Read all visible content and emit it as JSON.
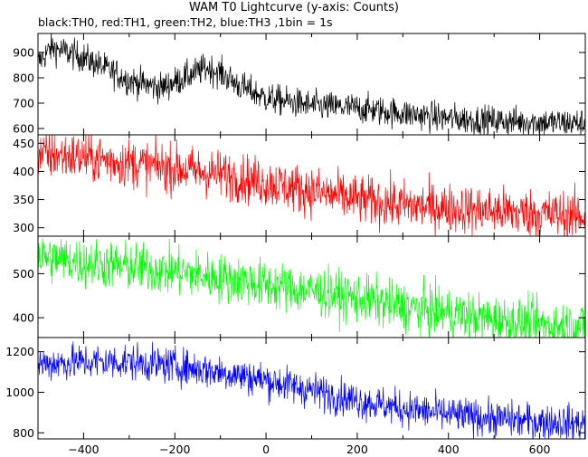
{
  "chart_data": {
    "type": "line",
    "title": "WAM T0 Lightcurve (y-axis: Counts)",
    "subtitle": "black:TH0, red:TH1, green:TH2, blue:TH3 ,1bin = 1s",
    "x_range": [
      -500,
      700
    ],
    "x_ticks": [
      -400,
      -200,
      0,
      200,
      400,
      600
    ],
    "bin_seconds": 1,
    "panels": [
      {
        "name": "TH0",
        "color": "#000000",
        "ylim": [
          575,
          975
        ],
        "y_ticks": [
          600,
          700,
          800,
          900
        ],
        "noise": 30,
        "trend": [
          [
            -500,
            860
          ],
          [
            -470,
            920
          ],
          [
            -400,
            880
          ],
          [
            -300,
            790
          ],
          [
            -230,
            760
          ],
          [
            -180,
            800
          ],
          [
            -130,
            840
          ],
          [
            -100,
            820
          ],
          [
            -60,
            770
          ],
          [
            0,
            720
          ],
          [
            100,
            690
          ],
          [
            200,
            680
          ],
          [
            300,
            660
          ],
          [
            400,
            640
          ],
          [
            500,
            630
          ],
          [
            600,
            625
          ],
          [
            700,
            620
          ]
        ]
      },
      {
        "name": "TH1",
        "color": "#ff0000",
        "ylim": [
          285,
          465
        ],
        "y_ticks": [
          300,
          350,
          400,
          450
        ],
        "noise": 22,
        "trend": [
          [
            -500,
            430
          ],
          [
            -400,
            425
          ],
          [
            -300,
            415
          ],
          [
            -200,
            405
          ],
          [
            -100,
            395
          ],
          [
            0,
            380
          ],
          [
            100,
            365
          ],
          [
            200,
            350
          ],
          [
            300,
            340
          ],
          [
            400,
            335
          ],
          [
            500,
            330
          ],
          [
            600,
            325
          ],
          [
            700,
            320
          ]
        ]
      },
      {
        "name": "TH2",
        "color": "#00ff00",
        "ylim": [
          355,
          585
        ],
        "y_ticks": [
          400,
          500
        ],
        "noise": 28,
        "trend": [
          [
            -500,
            540
          ],
          [
            -400,
            525
          ],
          [
            -300,
            515
          ],
          [
            -200,
            505
          ],
          [
            -100,
            490
          ],
          [
            0,
            475
          ],
          [
            100,
            460
          ],
          [
            200,
            445
          ],
          [
            300,
            425
          ],
          [
            400,
            410
          ],
          [
            500,
            395
          ],
          [
            600,
            385
          ],
          [
            700,
            380
          ]
        ]
      },
      {
        "name": "TH3",
        "color": "#0000ff",
        "ylim": [
          770,
          1270
        ],
        "y_ticks": [
          800,
          1000,
          1200
        ],
        "noise": 45,
        "trend": [
          [
            -500,
            1140
          ],
          [
            -400,
            1150
          ],
          [
            -300,
            1150
          ],
          [
            -200,
            1130
          ],
          [
            -100,
            1100
          ],
          [
            0,
            1060
          ],
          [
            100,
            1010
          ],
          [
            200,
            960
          ],
          [
            300,
            920
          ],
          [
            400,
            890
          ],
          [
            500,
            870
          ],
          [
            600,
            855
          ],
          [
            700,
            845
          ]
        ]
      }
    ]
  }
}
